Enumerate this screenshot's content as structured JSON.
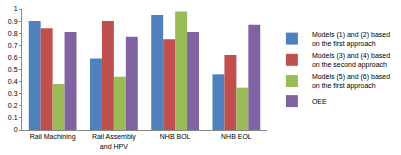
{
  "chart_data": {
    "type": "bar",
    "categories": [
      "Rail Machining",
      "Rail Assembly and HPV",
      "NHB BOL",
      "NHB EOL"
    ],
    "series": [
      {
        "name": "Models (1) and (2) based on the first approach",
        "color": "#4f81bd",
        "values": [
          0.9,
          0.59,
          0.95,
          0.46
        ]
      },
      {
        "name": "Models (3) and (4) based on the second approach",
        "color": "#c0504d",
        "values": [
          0.84,
          0.9,
          0.75,
          0.62
        ]
      },
      {
        "name": "Models (5) and (6) based on the first approach",
        "color": "#9bbb59",
        "values": [
          0.38,
          0.44,
          0.98,
          0.35
        ]
      },
      {
        "name": "OEE",
        "color": "#8064a2",
        "values": [
          0.81,
          0.77,
          0.81,
          0.87
        ]
      }
    ],
    "ylim": [
      0,
      1
    ],
    "yticks": [
      0,
      0.1,
      0.2,
      0.3,
      0.4,
      0.5,
      0.6,
      0.7,
      0.8,
      0.9,
      1
    ],
    "grid": false,
    "legend": "right"
  }
}
